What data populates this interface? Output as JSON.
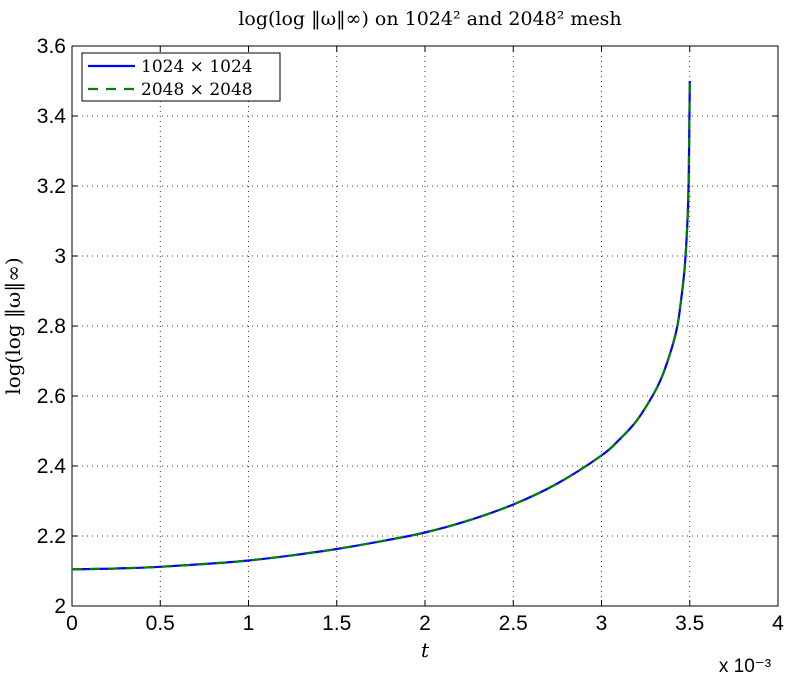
{
  "chart_data": {
    "type": "line",
    "title": "log(log ‖ω‖∞) on 1024² and 2048² mesh",
    "xlabel": "t",
    "ylabel": "log(log ‖ω‖∞)",
    "x_exponent_label": "x 10⁻³",
    "xlim": [
      0,
      4
    ],
    "ylim": [
      2,
      3.6
    ],
    "xticks": [
      0,
      0.5,
      1,
      1.5,
      2,
      2.5,
      3,
      3.5,
      4
    ],
    "xtick_labels": [
      "0",
      "0.5",
      "1",
      "1.5",
      "2",
      "2.5",
      "3",
      "3.5",
      "4"
    ],
    "yticks": [
      2,
      2.2,
      2.4,
      2.6,
      2.8,
      3,
      3.2,
      3.4,
      3.6
    ],
    "ytick_labels": [
      "2",
      "2.2",
      "2.4",
      "2.6",
      "2.8",
      "3",
      "3.2",
      "3.4",
      "3.6"
    ],
    "grid": true,
    "legend_position": "top-left",
    "x": [
      0,
      0.25,
      0.5,
      0.75,
      1.0,
      1.25,
      1.5,
      1.75,
      2.0,
      2.25,
      2.5,
      2.75,
      3.0,
      3.1,
      3.2,
      3.3,
      3.35,
      3.4,
      3.43,
      3.45,
      3.47,
      3.48,
      3.49,
      3.495,
      3.5
    ],
    "series": [
      {
        "name": "1024 × 1024",
        "color": "#0000ff",
        "style": "solid",
        "values": [
          2.105,
          2.107,
          2.112,
          2.12,
          2.13,
          2.145,
          2.163,
          2.185,
          2.21,
          2.245,
          2.29,
          2.35,
          2.43,
          2.475,
          2.53,
          2.61,
          2.665,
          2.74,
          2.8,
          2.87,
          2.96,
          3.03,
          3.14,
          3.26,
          3.5
        ]
      },
      {
        "name": "2048 × 2048",
        "color": "#008000",
        "style": "dashed",
        "values": [
          2.105,
          2.107,
          2.112,
          2.12,
          2.13,
          2.145,
          2.163,
          2.185,
          2.21,
          2.245,
          2.29,
          2.35,
          2.43,
          2.475,
          2.53,
          2.61,
          2.665,
          2.74,
          2.8,
          2.87,
          2.96,
          3.03,
          3.14,
          3.26,
          3.5
        ]
      }
    ]
  }
}
